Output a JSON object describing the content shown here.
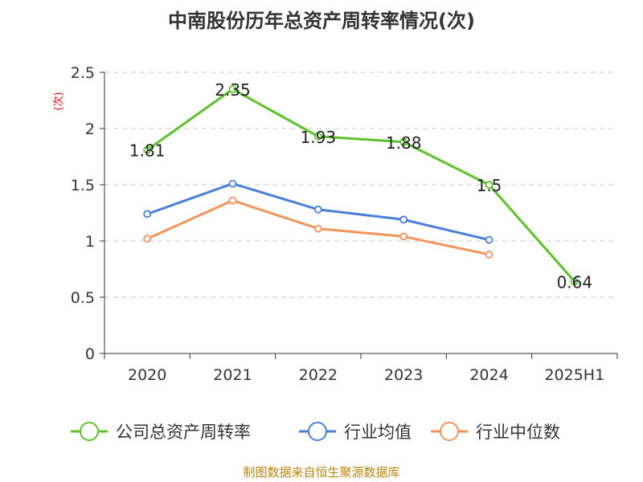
{
  "chart_data": {
    "type": "line",
    "title": "中南股份历年总资产周转率情况(次)",
    "xlabel": "",
    "ylabel": "(次)",
    "categories": [
      "2020",
      "2021",
      "2022",
      "2023",
      "2024",
      "2025H1"
    ],
    "ylim": [
      0,
      2.5
    ],
    "yticks": [
      "0",
      "0.5",
      "1",
      "1.5",
      "2",
      "2.5"
    ],
    "grid": true,
    "legend_position": "bottom",
    "series": [
      {
        "name": "公司总资产周转率",
        "color": "#5cc22a",
        "values": [
          1.81,
          2.35,
          1.93,
          1.88,
          1.5,
          0.64
        ],
        "data_labels": [
          "1.81",
          "2.35",
          "1.93",
          "1.88",
          "1.5",
          "0.64"
        ]
      },
      {
        "name": "行业均值",
        "color": "#4a7fd9",
        "values": [
          1.24,
          1.51,
          1.28,
          1.19,
          1.01,
          null
        ]
      },
      {
        "name": "行业中位数",
        "color": "#f5935a",
        "values": [
          1.02,
          1.36,
          1.11,
          1.04,
          0.88,
          null
        ]
      }
    ],
    "source": "制图数据来自恒生聚源数据库"
  }
}
